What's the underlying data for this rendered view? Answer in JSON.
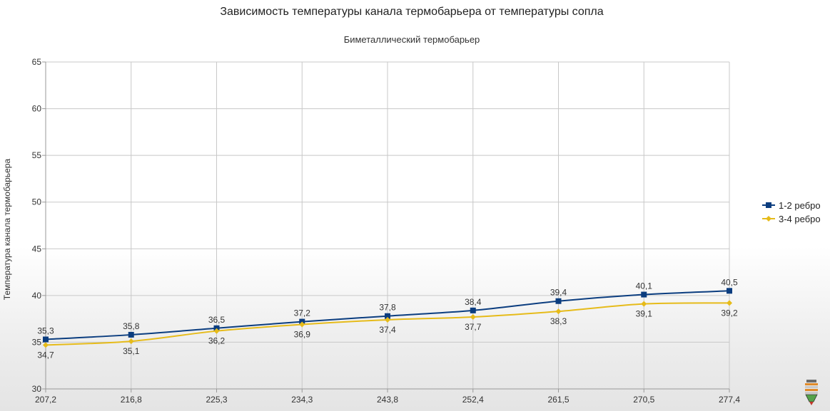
{
  "chart_data": {
    "type": "line",
    "title": "Зависимость температуры канала термобарьера от температуры сопла",
    "subtitle": "Биметаллический термобарьер",
    "xlabel": "",
    "ylabel": "Температура канала термобарьера",
    "categories": [
      "207,2",
      "216,8",
      "225,3",
      "234,3",
      "243,8",
      "252,4",
      "261,5",
      "270,5",
      "277,4"
    ],
    "ylim": [
      30,
      65
    ],
    "yticks": [
      "30",
      "35",
      "40",
      "45",
      "50",
      "55",
      "60",
      "65"
    ],
    "grid": true,
    "legend_position": "right",
    "series": [
      {
        "name": "1-2 ребро",
        "color": "#0b3d7f",
        "marker": "square",
        "values": [
          35.3,
          35.8,
          36.5,
          37.2,
          37.8,
          38.4,
          39.4,
          40.1,
          40.5
        ],
        "labels": [
          "35,3",
          "35,8",
          "36,5",
          "37,2",
          "37,8",
          "38,4",
          "39,4",
          "40,1",
          "40,5"
        ]
      },
      {
        "name": "3-4 ребро",
        "color": "#e6bb1a",
        "marker": "diamond",
        "values": [
          34.7,
          35.1,
          36.2,
          36.9,
          37.4,
          37.7,
          38.3,
          39.1,
          39.2
        ],
        "labels": [
          "34,7",
          "35,1",
          "36,2",
          "36,9",
          "37,4",
          "37,7",
          "38,3",
          "39,1",
          "39,2"
        ]
      }
    ]
  },
  "watermark_icon": "nozzle-logo-icon"
}
